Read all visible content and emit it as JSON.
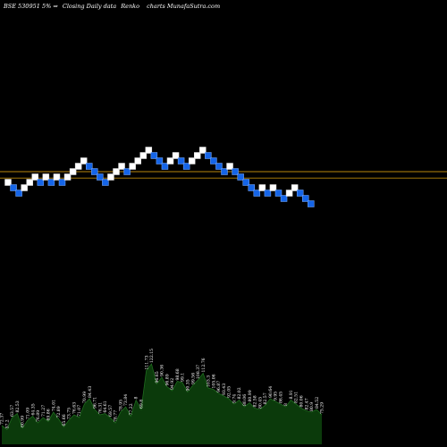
{
  "header": {
    "symbol": "BSE 530951",
    "change": "5%",
    "arrow": "⇒",
    "description": "Closing Daily data",
    "chart_kind": "Renko",
    "site": "charts MunafaSutra.com"
  },
  "colors": {
    "background": "#000000",
    "brick_up": "#ffffff",
    "brick_down": "#1565e8",
    "brick_down_edge": "#7fb0ff",
    "level_line": "#b8860b",
    "volume_fill": "#0b3a0b",
    "volume_edge": "#1f6b1f"
  },
  "chart_data": {
    "type": "renko",
    "bricks": [
      {
        "level": 27,
        "dir": "up"
      },
      {
        "level": 26,
        "dir": "down"
      },
      {
        "level": 25,
        "dir": "down"
      },
      {
        "level": 26,
        "dir": "up"
      },
      {
        "level": 27,
        "dir": "up"
      },
      {
        "level": 28,
        "dir": "up"
      },
      {
        "level": 27,
        "dir": "down"
      },
      {
        "level": 28,
        "dir": "up"
      },
      {
        "level": 27,
        "dir": "down"
      },
      {
        "level": 28,
        "dir": "up"
      },
      {
        "level": 27,
        "dir": "down"
      },
      {
        "level": 28,
        "dir": "up"
      },
      {
        "level": 29,
        "dir": "up"
      },
      {
        "level": 30,
        "dir": "up"
      },
      {
        "level": 31,
        "dir": "up"
      },
      {
        "level": 30,
        "dir": "down"
      },
      {
        "level": 29,
        "dir": "down"
      },
      {
        "level": 28,
        "dir": "down"
      },
      {
        "level": 27,
        "dir": "down"
      },
      {
        "level": 28,
        "dir": "up"
      },
      {
        "level": 29,
        "dir": "up"
      },
      {
        "level": 30,
        "dir": "up"
      },
      {
        "level": 29,
        "dir": "down"
      },
      {
        "level": 30,
        "dir": "up"
      },
      {
        "level": 31,
        "dir": "up"
      },
      {
        "level": 32,
        "dir": "up"
      },
      {
        "level": 33,
        "dir": "up"
      },
      {
        "level": 32,
        "dir": "down"
      },
      {
        "level": 31,
        "dir": "down"
      },
      {
        "level": 30,
        "dir": "down"
      },
      {
        "level": 31,
        "dir": "up"
      },
      {
        "level": 32,
        "dir": "up"
      },
      {
        "level": 31,
        "dir": "down"
      },
      {
        "level": 30,
        "dir": "down"
      },
      {
        "level": 31,
        "dir": "up"
      },
      {
        "level": 32,
        "dir": "up"
      },
      {
        "level": 33,
        "dir": "up"
      },
      {
        "level": 32,
        "dir": "down"
      },
      {
        "level": 31,
        "dir": "down"
      },
      {
        "level": 30,
        "dir": "down"
      },
      {
        "level": 29,
        "dir": "down"
      },
      {
        "level": 30,
        "dir": "up"
      },
      {
        "level": 29,
        "dir": "down"
      },
      {
        "level": 28,
        "dir": "down"
      },
      {
        "level": 27,
        "dir": "down"
      },
      {
        "level": 26,
        "dir": "down"
      },
      {
        "level": 25,
        "dir": "down"
      },
      {
        "level": 26,
        "dir": "up"
      },
      {
        "level": 25,
        "dir": "down"
      },
      {
        "level": 26,
        "dir": "up"
      },
      {
        "level": 25,
        "dir": "down"
      },
      {
        "level": 24,
        "dir": "down"
      },
      {
        "level": 25,
        "dir": "up"
      },
      {
        "level": 26,
        "dir": "up"
      },
      {
        "level": 25,
        "dir": "down"
      },
      {
        "level": 24,
        "dir": "down"
      },
      {
        "level": 23,
        "dir": "down"
      }
    ],
    "level_lines": [
      29.0,
      27.8
    ],
    "volume": [
      {
        "label": "72.37",
        "value": 0.14
      },
      {
        "label": "57.2",
        "value": 0.11
      },
      {
        "label": "63.57",
        "value": 0.2
      },
      {
        "label": "82.53",
        "value": 0.23
      },
      {
        "label": "60.99",
        "value": 0.12
      },
      {
        "label": "71.09",
        "value": 0.18
      },
      {
        "label": "64.35",
        "value": 0.21
      },
      {
        "label": "76.89",
        "value": 0.16
      },
      {
        "label": "71.27",
        "value": 0.2
      },
      {
        "label": "69.86",
        "value": 0.17
      },
      {
        "label": "74.01",
        "value": 0.24
      },
      {
        "label": "72.89",
        "value": 0.19
      },
      {
        "label": "65.66",
        "value": 0.13
      },
      {
        "label": "73.75",
        "value": 0.18
      },
      {
        "label": "76.63",
        "value": 0.22
      },
      {
        "label": "71.07",
        "value": 0.2
      },
      {
        "label": "70.99",
        "value": 0.3
      },
      {
        "label": "84.43",
        "value": 0.34
      },
      {
        "label": "96.71",
        "value": 0.26
      },
      {
        "label": "76.31",
        "value": 0.22
      },
      {
        "label": "64.61",
        "value": 0.23
      },
      {
        "label": "69.57",
        "value": 0.2
      },
      {
        "label": "78.77",
        "value": 0.16
      },
      {
        "label": "78.95",
        "value": 0.24
      },
      {
        "label": "73.84",
        "value": 0.28
      },
      {
        "label": "77.22",
        "value": 0.21
      },
      {
        "label": "8",
        "value": 0.33
      },
      {
        "label": "69.8",
        "value": 0.26
      },
      {
        "label": "111.73",
        "value": 0.55
      },
      {
        "label": "122.15",
        "value": 0.6
      },
      {
        "label": "96.65",
        "value": 0.45
      },
      {
        "label": "90.36",
        "value": 0.5
      },
      {
        "label": "96.89",
        "value": 0.43
      },
      {
        "label": "94.92",
        "value": 0.4
      },
      {
        "label": "98.68",
        "value": 0.47
      },
      {
        "label": "99.1",
        "value": 0.46
      },
      {
        "label": "90.35",
        "value": 0.39
      },
      {
        "label": "99.56",
        "value": 0.44
      },
      {
        "label": "108.37",
        "value": 0.48
      },
      {
        "label": "112.76",
        "value": 0.53
      },
      {
        "label": "103.3",
        "value": 0.42
      },
      {
        "label": "105.06",
        "value": 0.41
      },
      {
        "label": "96.87",
        "value": 0.38
      },
      {
        "label": "93.43",
        "value": 0.36
      },
      {
        "label": "92.05",
        "value": 0.34
      },
      {
        "label": "9.74",
        "value": 0.3
      },
      {
        "label": "82.02",
        "value": 0.33
      },
      {
        "label": "80.06",
        "value": 0.28
      },
      {
        "label": "80.99",
        "value": 0.31
      },
      {
        "label": "82.58",
        "value": 0.27
      },
      {
        "label": "80.45",
        "value": 0.26
      },
      {
        "label": "82.57",
        "value": 0.29
      },
      {
        "label": "90.64",
        "value": 0.34
      },
      {
        "label": "9.95",
        "value": 0.32
      },
      {
        "label": "86.45",
        "value": 0.3
      },
      {
        "label": "8",
        "value": 0.28
      },
      {
        "label": "8.91",
        "value": 0.33
      },
      {
        "label": "82.51",
        "value": 0.3
      },
      {
        "label": "80.06",
        "value": 0.27
      },
      {
        "label": "82.47",
        "value": 0.25
      },
      {
        "label": "80.9",
        "value": 0.24
      },
      {
        "label": "84.52",
        "value": 0.26
      },
      {
        "label": "75.29",
        "value": 0.22
      }
    ]
  }
}
